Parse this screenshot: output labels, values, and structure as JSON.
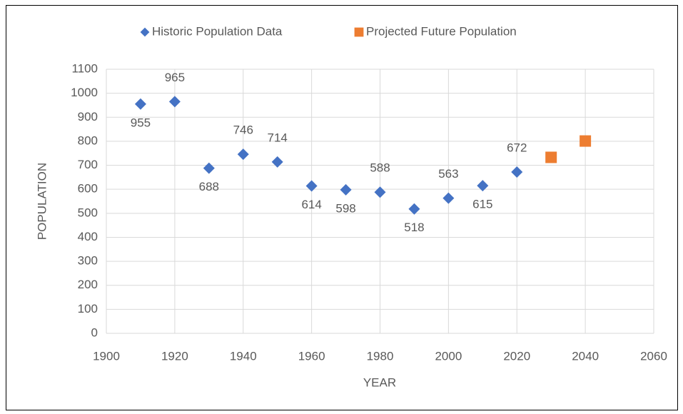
{
  "chart_data": {
    "type": "scatter",
    "xlabel": "YEAR",
    "ylabel": "POPULATION",
    "xlim": [
      1900,
      2060
    ],
    "xticks": [
      1900,
      1920,
      1940,
      1960,
      1980,
      2000,
      2020,
      2040,
      2060
    ],
    "ylim": [
      0,
      1100
    ],
    "yticks": [
      0,
      100,
      200,
      300,
      400,
      500,
      600,
      700,
      800,
      900,
      1000,
      1100
    ],
    "grid": true,
    "legend": "top",
    "series": [
      {
        "name": "Historic Population Data",
        "color": "#4472c4",
        "marker": "diamond",
        "data_labels": true,
        "x": [
          1910,
          1920,
          1930,
          1940,
          1950,
          1960,
          1970,
          1980,
          1990,
          2000,
          2010,
          2020
        ],
        "values": [
          955,
          965,
          688,
          746,
          714,
          614,
          598,
          588,
          518,
          563,
          615,
          672
        ]
      },
      {
        "name": "Projected Future Population",
        "color": "#ed7d31",
        "marker": "square",
        "data_labels": false,
        "x": [
          2030,
          2040
        ],
        "values": [
          733,
          801
        ]
      }
    ]
  }
}
